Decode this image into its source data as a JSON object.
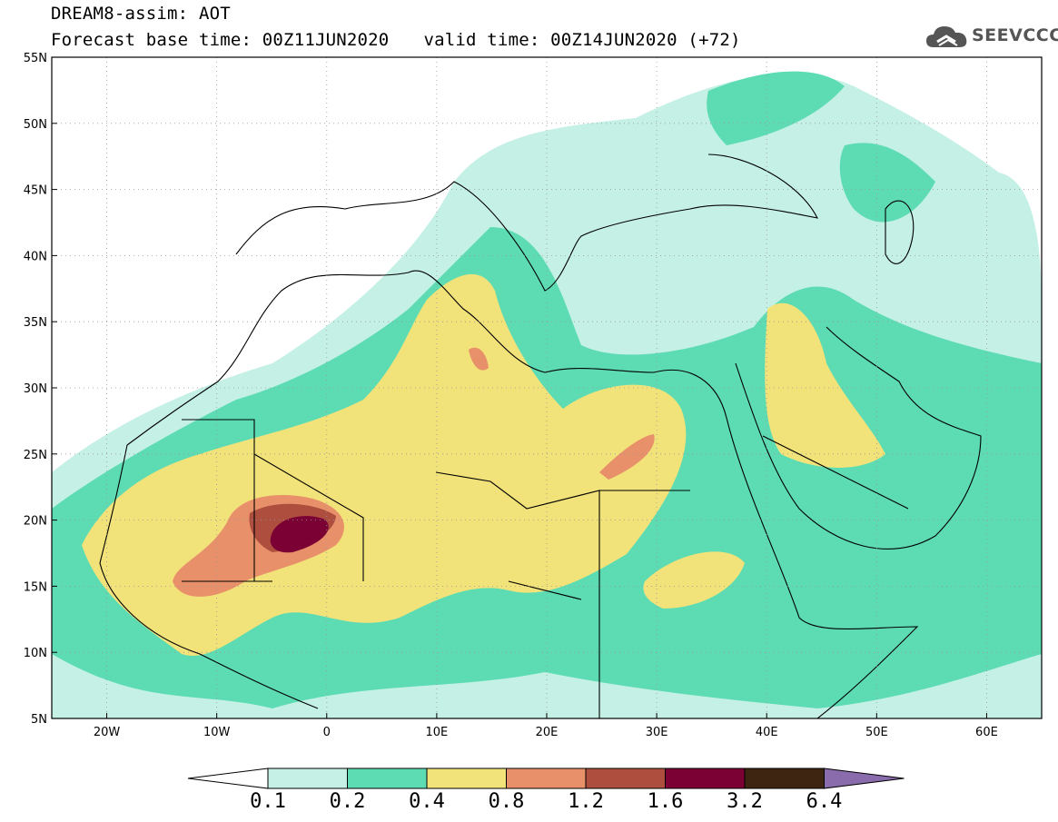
{
  "header": {
    "title": "DREAM8-assim: AOT",
    "base_time_label": "Forecast base time: 00Z11JUN2020",
    "valid_time_label": "valid time: 00Z14JUN2020 (+72)"
  },
  "logo": {
    "text": "SEEVCCC",
    "icon": "cloud-logo-icon"
  },
  "map": {
    "lon_range": [
      -25,
      65
    ],
    "lat_range": [
      5,
      55
    ],
    "lon_ticks": [
      "20W",
      "10W",
      "0",
      "10E",
      "20E",
      "30E",
      "40E",
      "50E",
      "60E"
    ],
    "lat_ticks": [
      "55N",
      "50N",
      "45N",
      "40N",
      "35N",
      "30N",
      "25N",
      "20N",
      "15N",
      "10N",
      "5N"
    ],
    "grid": "dotted"
  },
  "colorbar": {
    "labels": [
      "0.1",
      "0.2",
      "0.4",
      "0.8",
      "1.2",
      "1.6",
      "3.2",
      "6.4"
    ],
    "colors": [
      "#ffffff",
      "#c5f0e6",
      "#5ddcb4",
      "#f2e27a",
      "#e8906a",
      "#ad4e3e",
      "#7b0034",
      "#3d2512",
      "#8a6bab"
    ]
  }
}
